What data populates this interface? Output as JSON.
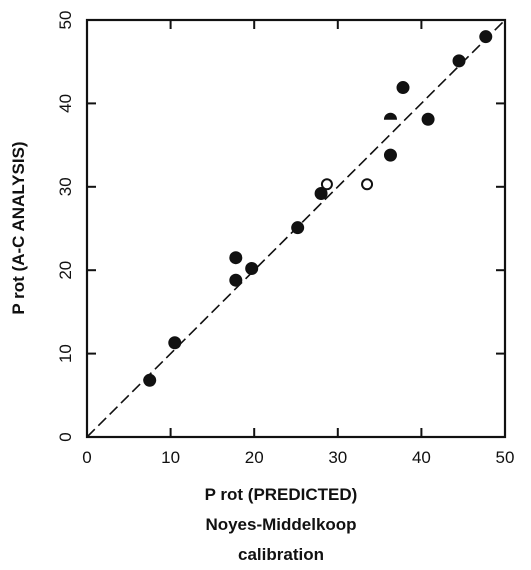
{
  "chart_data": {
    "type": "scatter",
    "xlabel": "P rot  (PREDICTED)",
    "xlabel_sub": [
      "Noyes-Middelkoop",
      "calibration"
    ],
    "ylabel": "P rot (A-C ANALYSIS)",
    "xlim": [
      0,
      50
    ],
    "ylim": [
      0,
      50
    ],
    "x_ticks": [
      "0",
      "10",
      "20",
      "30",
      "40",
      "50"
    ],
    "y_ticks": [
      "0",
      "10",
      "20",
      "30",
      "40",
      "50"
    ],
    "grid": false,
    "reference_line": {
      "style": "dashed",
      "x": [
        0,
        50
      ],
      "y": [
        0,
        50
      ]
    },
    "series": [
      {
        "marker": "filled-circle",
        "points": [
          {
            "x": 7.5,
            "y": 6.8
          },
          {
            "x": 10.5,
            "y": 11.3
          },
          {
            "x": 17.8,
            "y": 21.5
          },
          {
            "x": 17.8,
            "y": 18.8
          },
          {
            "x": 19.7,
            "y": 20.2
          },
          {
            "x": 25.2,
            "y": 25.1
          },
          {
            "x": 28.0,
            "y": 29.2
          },
          {
            "x": 36.3,
            "y": 33.8
          },
          {
            "x": 37.8,
            "y": 41.9
          },
          {
            "x": 40.8,
            "y": 38.1
          },
          {
            "x": 44.5,
            "y": 45.1
          },
          {
            "x": 47.7,
            "y": 48.0
          }
        ]
      },
      {
        "marker": "open-circle",
        "points": [
          {
            "x": 28.7,
            "y": 30.3
          },
          {
            "x": 33.5,
            "y": 30.3
          }
        ]
      },
      {
        "marker": "half-filled-circle",
        "points": [
          {
            "x": 36.3,
            "y": 38.1
          }
        ]
      }
    ]
  }
}
